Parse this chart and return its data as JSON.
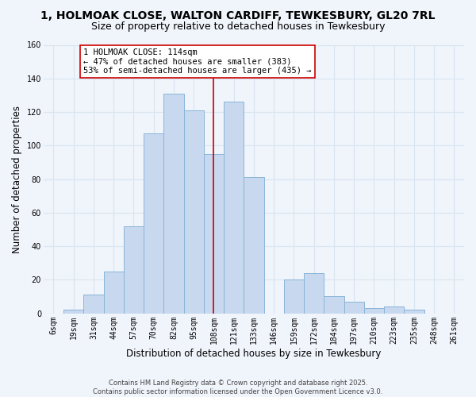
{
  "title_line1": "1, HOLMOAK CLOSE, WALTON CARDIFF, TEWKESBURY, GL20 7RL",
  "title_line2": "Size of property relative to detached houses in Tewkesbury",
  "xlabel": "Distribution of detached houses by size in Tewkesbury",
  "ylabel": "Number of detached properties",
  "bar_labels": [
    "6sqm",
    "19sqm",
    "31sqm",
    "44sqm",
    "57sqm",
    "70sqm",
    "82sqm",
    "95sqm",
    "108sqm",
    "121sqm",
    "133sqm",
    "146sqm",
    "159sqm",
    "172sqm",
    "184sqm",
    "197sqm",
    "210sqm",
    "223sqm",
    "235sqm",
    "248sqm",
    "261sqm"
  ],
  "bar_values": [
    0,
    2,
    11,
    25,
    52,
    107,
    131,
    121,
    95,
    126,
    81,
    0,
    20,
    24,
    10,
    7,
    3,
    4,
    2,
    0,
    0
  ],
  "bar_color": "#c8d9ef",
  "bar_edge_color": "#8ab4d8",
  "vline_x_index": 8,
  "vline_color": "#cc0000",
  "annotation_title": "1 HOLMOAK CLOSE: 114sqm",
  "annotation_line2": "← 47% of detached houses are smaller (383)",
  "annotation_line3": "53% of semi-detached houses are larger (435) →",
  "annotation_box_edge": "#cc0000",
  "ylim": [
    0,
    160
  ],
  "yticks": [
    0,
    20,
    40,
    60,
    80,
    100,
    120,
    140,
    160
  ],
  "footer_line1": "Contains HM Land Registry data © Crown copyright and database right 2025.",
  "footer_line2": "Contains public sector information licensed under the Open Government Licence v3.0.",
  "background_color": "#f0f4fb",
  "grid_color": "#d8e4f0",
  "title_fontsize": 10,
  "subtitle_fontsize": 9,
  "axis_label_fontsize": 8.5,
  "tick_fontsize": 7,
  "annotation_fontsize": 7.5,
  "footer_fontsize": 6
}
